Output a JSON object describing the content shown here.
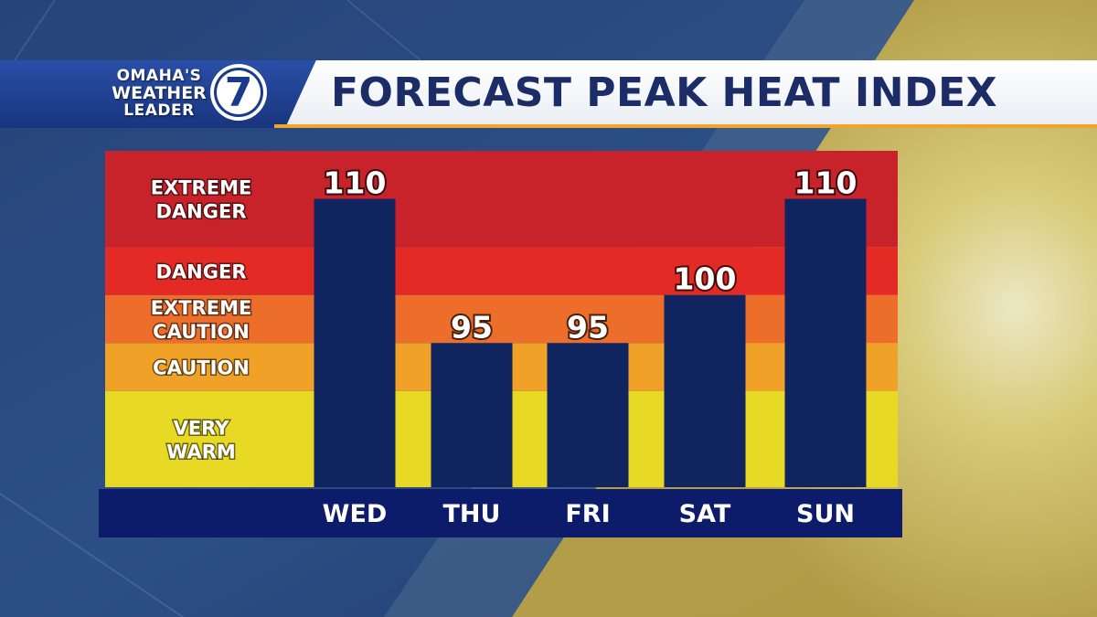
{
  "branding": {
    "logo_line1": "OMAHA'S",
    "logo_line2": "WEATHER",
    "logo_line3": "LEADER",
    "logo_number": "7"
  },
  "header": {
    "title": "FORECAST PEAK HEAT INDEX"
  },
  "colors": {
    "bar": "#10245f",
    "axis_bar": "#0d1c6a",
    "title_text": "#1c2c66",
    "accent_stripe": "#f0a52a",
    "band_extreme_danger": "#c8232a",
    "band_danger": "#e42a25",
    "band_extreme_caution": "#ec6e2a",
    "band_caution": "#f0a127",
    "band_very_warm": "#e8d925"
  },
  "chart_data": {
    "type": "bar",
    "title": "FORECAST PEAK HEAT INDEX",
    "categories": [
      "WED",
      "THU",
      "FRI",
      "SAT",
      "SUN"
    ],
    "values": [
      110,
      95,
      95,
      100,
      110
    ],
    "value_labels": [
      "110",
      "95",
      "95",
      "100",
      "110"
    ],
    "ylim": [
      80,
      115
    ],
    "bands": [
      {
        "label_lines": [
          "VERY",
          "WARM"
        ],
        "from": 80,
        "to": 90,
        "color": "#e8d925"
      },
      {
        "label_lines": [
          "CAUTION"
        ],
        "from": 90,
        "to": 95,
        "color": "#f0a127"
      },
      {
        "label_lines": [
          "EXTREME",
          "CAUTION"
        ],
        "from": 95,
        "to": 100,
        "color": "#ec6e2a"
      },
      {
        "label_lines": [
          "DANGER"
        ],
        "from": 100,
        "to": 105,
        "color": "#e42a25"
      },
      {
        "label_lines": [
          "EXTREME",
          "DANGER"
        ],
        "from": 105,
        "to": 115,
        "color": "#c8232a"
      }
    ]
  }
}
